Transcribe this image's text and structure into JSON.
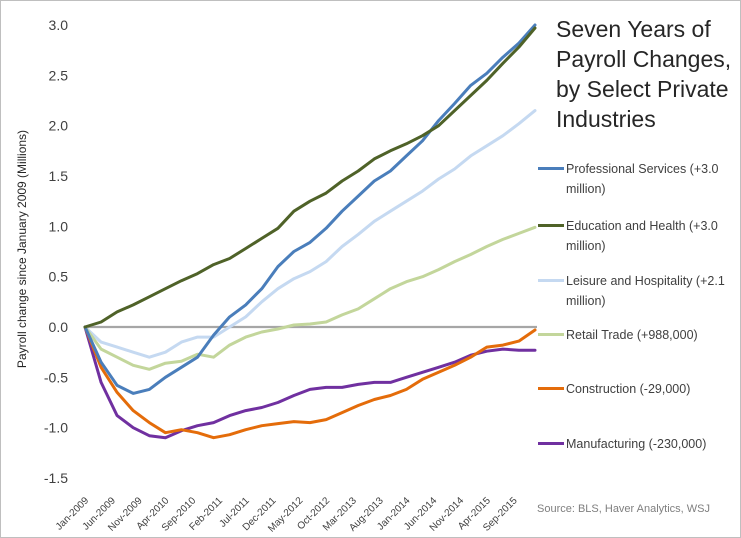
{
  "chart_data": {
    "type": "line",
    "title": "Seven Years of Payroll Changes, by Select Private Industries",
    "ylabel": "Payroll change since January 2009 (Millions)",
    "ylim": [
      -1.5,
      3.0
    ],
    "yticks": [
      "-1.5",
      "-1.0",
      "-0.5",
      "0.0",
      "0.5",
      "1.0",
      "1.5",
      "2.0",
      "2.5",
      "3.0"
    ],
    "ytick_values": [
      -1.5,
      -1.0,
      -0.5,
      0.0,
      0.5,
      1.0,
      1.5,
      2.0,
      2.5,
      3.0
    ],
    "x_start": "Jan-2009",
    "x_end": "Jan-2016",
    "xticks": [
      "Jan-2009",
      "Jun-2009",
      "Nov-2009",
      "Apr-2010",
      "Sep-2010",
      "Feb-2011",
      "Jul-2011",
      "Dec-2011",
      "May-2012",
      "Oct-2012",
      "Mar-2013",
      "Aug-2013",
      "Jan-2014",
      "Jun-2014",
      "Nov-2014",
      "Apr-2015",
      "Sep-2015"
    ],
    "grid": false,
    "zero_line": true,
    "legend_position": "right",
    "source": "Source: BLS, Haver Analytics, WSJ",
    "series": [
      {
        "name": "Professional Services (+3.0 million)",
        "color": "#4a7ebb",
        "points": [
          [
            "Jan-2009",
            0.0
          ],
          [
            "Apr-2009",
            -0.35
          ],
          [
            "Jul-2009",
            -0.58
          ],
          [
            "Oct-2009",
            -0.66
          ],
          [
            "Jan-2010",
            -0.62
          ],
          [
            "Apr-2010",
            -0.5
          ],
          [
            "Jul-2010",
            -0.4
          ],
          [
            "Oct-2010",
            -0.3
          ],
          [
            "Jan-2011",
            -0.08
          ],
          [
            "Apr-2011",
            0.1
          ],
          [
            "Jul-2011",
            0.22
          ],
          [
            "Oct-2011",
            0.38
          ],
          [
            "Jan-2012",
            0.6
          ],
          [
            "Apr-2012",
            0.75
          ],
          [
            "Jul-2012",
            0.84
          ],
          [
            "Oct-2012",
            0.98
          ],
          [
            "Jan-2013",
            1.15
          ],
          [
            "Apr-2013",
            1.3
          ],
          [
            "Jul-2013",
            1.45
          ],
          [
            "Oct-2013",
            1.55
          ],
          [
            "Jan-2014",
            1.7
          ],
          [
            "Apr-2014",
            1.85
          ],
          [
            "Jul-2014",
            2.05
          ],
          [
            "Oct-2014",
            2.22
          ],
          [
            "Jan-2015",
            2.4
          ],
          [
            "Apr-2015",
            2.52
          ],
          [
            "Jul-2015",
            2.68
          ],
          [
            "Oct-2015",
            2.82
          ],
          [
            "Jan-2016",
            3.0
          ]
        ]
      },
      {
        "name": "Education and Health (+3.0 million)",
        "color": "#4f6228",
        "points": [
          [
            "Jan-2009",
            0.0
          ],
          [
            "Apr-2009",
            0.05
          ],
          [
            "Jul-2009",
            0.15
          ],
          [
            "Oct-2009",
            0.22
          ],
          [
            "Jan-2010",
            0.3
          ],
          [
            "Apr-2010",
            0.38
          ],
          [
            "Jul-2010",
            0.46
          ],
          [
            "Oct-2010",
            0.53
          ],
          [
            "Jan-2011",
            0.62
          ],
          [
            "Apr-2011",
            0.68
          ],
          [
            "Jul-2011",
            0.78
          ],
          [
            "Oct-2011",
            0.88
          ],
          [
            "Jan-2012",
            0.98
          ],
          [
            "Apr-2012",
            1.15
          ],
          [
            "Jul-2012",
            1.25
          ],
          [
            "Oct-2012",
            1.33
          ],
          [
            "Jan-2013",
            1.45
          ],
          [
            "Apr-2013",
            1.55
          ],
          [
            "Jul-2013",
            1.67
          ],
          [
            "Oct-2013",
            1.75
          ],
          [
            "Jan-2014",
            1.82
          ],
          [
            "Apr-2014",
            1.9
          ],
          [
            "Jul-2014",
            2.0
          ],
          [
            "Oct-2014",
            2.15
          ],
          [
            "Jan-2015",
            2.3
          ],
          [
            "Apr-2015",
            2.45
          ],
          [
            "Jul-2015",
            2.62
          ],
          [
            "Oct-2015",
            2.78
          ],
          [
            "Jan-2016",
            2.97
          ]
        ]
      },
      {
        "name": "Leisure and Hospitality (+2.1 million)",
        "color": "#c5d9f1",
        "points": [
          [
            "Jan-2009",
            0.0
          ],
          [
            "Apr-2009",
            -0.15
          ],
          [
            "Jul-2009",
            -0.2
          ],
          [
            "Oct-2009",
            -0.25
          ],
          [
            "Jan-2010",
            -0.3
          ],
          [
            "Apr-2010",
            -0.25
          ],
          [
            "Jul-2010",
            -0.15
          ],
          [
            "Oct-2010",
            -0.1
          ],
          [
            "Jan-2011",
            -0.1
          ],
          [
            "Apr-2011",
            0.0
          ],
          [
            "Jul-2011",
            0.1
          ],
          [
            "Oct-2011",
            0.25
          ],
          [
            "Jan-2012",
            0.38
          ],
          [
            "Apr-2012",
            0.48
          ],
          [
            "Jul-2012",
            0.55
          ],
          [
            "Oct-2012",
            0.65
          ],
          [
            "Jan-2013",
            0.8
          ],
          [
            "Apr-2013",
            0.92
          ],
          [
            "Jul-2013",
            1.05
          ],
          [
            "Oct-2013",
            1.15
          ],
          [
            "Jan-2014",
            1.25
          ],
          [
            "Apr-2014",
            1.35
          ],
          [
            "Jul-2014",
            1.47
          ],
          [
            "Oct-2014",
            1.57
          ],
          [
            "Jan-2015",
            1.7
          ],
          [
            "Apr-2015",
            1.8
          ],
          [
            "Jul-2015",
            1.9
          ],
          [
            "Oct-2015",
            2.02
          ],
          [
            "Jan-2016",
            2.15
          ]
        ]
      },
      {
        "name": "Retail Trade (+988,000)",
        "color": "#c3d69b",
        "points": [
          [
            "Jan-2009",
            0.0
          ],
          [
            "Apr-2009",
            -0.22
          ],
          [
            "Jul-2009",
            -0.3
          ],
          [
            "Oct-2009",
            -0.38
          ],
          [
            "Jan-2010",
            -0.42
          ],
          [
            "Apr-2010",
            -0.36
          ],
          [
            "Jul-2010",
            -0.34
          ],
          [
            "Oct-2010",
            -0.27
          ],
          [
            "Jan-2011",
            -0.3
          ],
          [
            "Apr-2011",
            -0.18
          ],
          [
            "Jul-2011",
            -0.1
          ],
          [
            "Oct-2011",
            -0.05
          ],
          [
            "Jan-2012",
            -0.02
          ],
          [
            "Apr-2012",
            0.02
          ],
          [
            "Jul-2012",
            0.03
          ],
          [
            "Oct-2012",
            0.05
          ],
          [
            "Jan-2013",
            0.12
          ],
          [
            "Apr-2013",
            0.18
          ],
          [
            "Jul-2013",
            0.28
          ],
          [
            "Oct-2013",
            0.38
          ],
          [
            "Jan-2014",
            0.45
          ],
          [
            "Apr-2014",
            0.5
          ],
          [
            "Jul-2014",
            0.57
          ],
          [
            "Oct-2014",
            0.65
          ],
          [
            "Jan-2015",
            0.72
          ],
          [
            "Apr-2015",
            0.8
          ],
          [
            "Jul-2015",
            0.87
          ],
          [
            "Oct-2015",
            0.93
          ],
          [
            "Jan-2016",
            0.99
          ]
        ]
      },
      {
        "name": "Construction (-29,000)",
        "color": "#e46c0a",
        "points": [
          [
            "Jan-2009",
            0.0
          ],
          [
            "Apr-2009",
            -0.4
          ],
          [
            "Jul-2009",
            -0.65
          ],
          [
            "Oct-2009",
            -0.83
          ],
          [
            "Jan-2010",
            -0.95
          ],
          [
            "Apr-2010",
            -1.05
          ],
          [
            "Jul-2010",
            -1.02
          ],
          [
            "Oct-2010",
            -1.05
          ],
          [
            "Jan-2011",
            -1.1
          ],
          [
            "Apr-2011",
            -1.07
          ],
          [
            "Jul-2011",
            -1.02
          ],
          [
            "Oct-2011",
            -0.98
          ],
          [
            "Jan-2012",
            -0.96
          ],
          [
            "Apr-2012",
            -0.94
          ],
          [
            "Jul-2012",
            -0.95
          ],
          [
            "Oct-2012",
            -0.92
          ],
          [
            "Jan-2013",
            -0.85
          ],
          [
            "Apr-2013",
            -0.78
          ],
          [
            "Jul-2013",
            -0.72
          ],
          [
            "Oct-2013",
            -0.68
          ],
          [
            "Jan-2014",
            -0.62
          ],
          [
            "Apr-2014",
            -0.52
          ],
          [
            "Jul-2014",
            -0.45
          ],
          [
            "Oct-2014",
            -0.38
          ],
          [
            "Jan-2015",
            -0.3
          ],
          [
            "Apr-2015",
            -0.2
          ],
          [
            "Jul-2015",
            -0.18
          ],
          [
            "Oct-2015",
            -0.14
          ],
          [
            "Jan-2016",
            -0.03
          ]
        ]
      },
      {
        "name": "Manufacturing (-230,000)",
        "color": "#7030a0",
        "points": [
          [
            "Jan-2009",
            0.0
          ],
          [
            "Apr-2009",
            -0.55
          ],
          [
            "Jul-2009",
            -0.88
          ],
          [
            "Oct-2009",
            -1.0
          ],
          [
            "Jan-2010",
            -1.08
          ],
          [
            "Apr-2010",
            -1.1
          ],
          [
            "Jul-2010",
            -1.03
          ],
          [
            "Oct-2010",
            -0.98
          ],
          [
            "Jan-2011",
            -0.95
          ],
          [
            "Apr-2011",
            -0.88
          ],
          [
            "Jul-2011",
            -0.83
          ],
          [
            "Oct-2011",
            -0.8
          ],
          [
            "Jan-2012",
            -0.75
          ],
          [
            "Apr-2012",
            -0.68
          ],
          [
            "Jul-2012",
            -0.62
          ],
          [
            "Oct-2012",
            -0.6
          ],
          [
            "Jan-2013",
            -0.6
          ],
          [
            "Apr-2013",
            -0.57
          ],
          [
            "Jul-2013",
            -0.55
          ],
          [
            "Oct-2013",
            -0.55
          ],
          [
            "Jan-2014",
            -0.5
          ],
          [
            "Apr-2014",
            -0.45
          ],
          [
            "Jul-2014",
            -0.4
          ],
          [
            "Oct-2014",
            -0.35
          ],
          [
            "Jan-2015",
            -0.28
          ],
          [
            "Apr-2015",
            -0.24
          ],
          [
            "Jul-2015",
            -0.22
          ],
          [
            "Oct-2015",
            -0.23
          ],
          [
            "Jan-2016",
            -0.23
          ]
        ]
      }
    ]
  }
}
